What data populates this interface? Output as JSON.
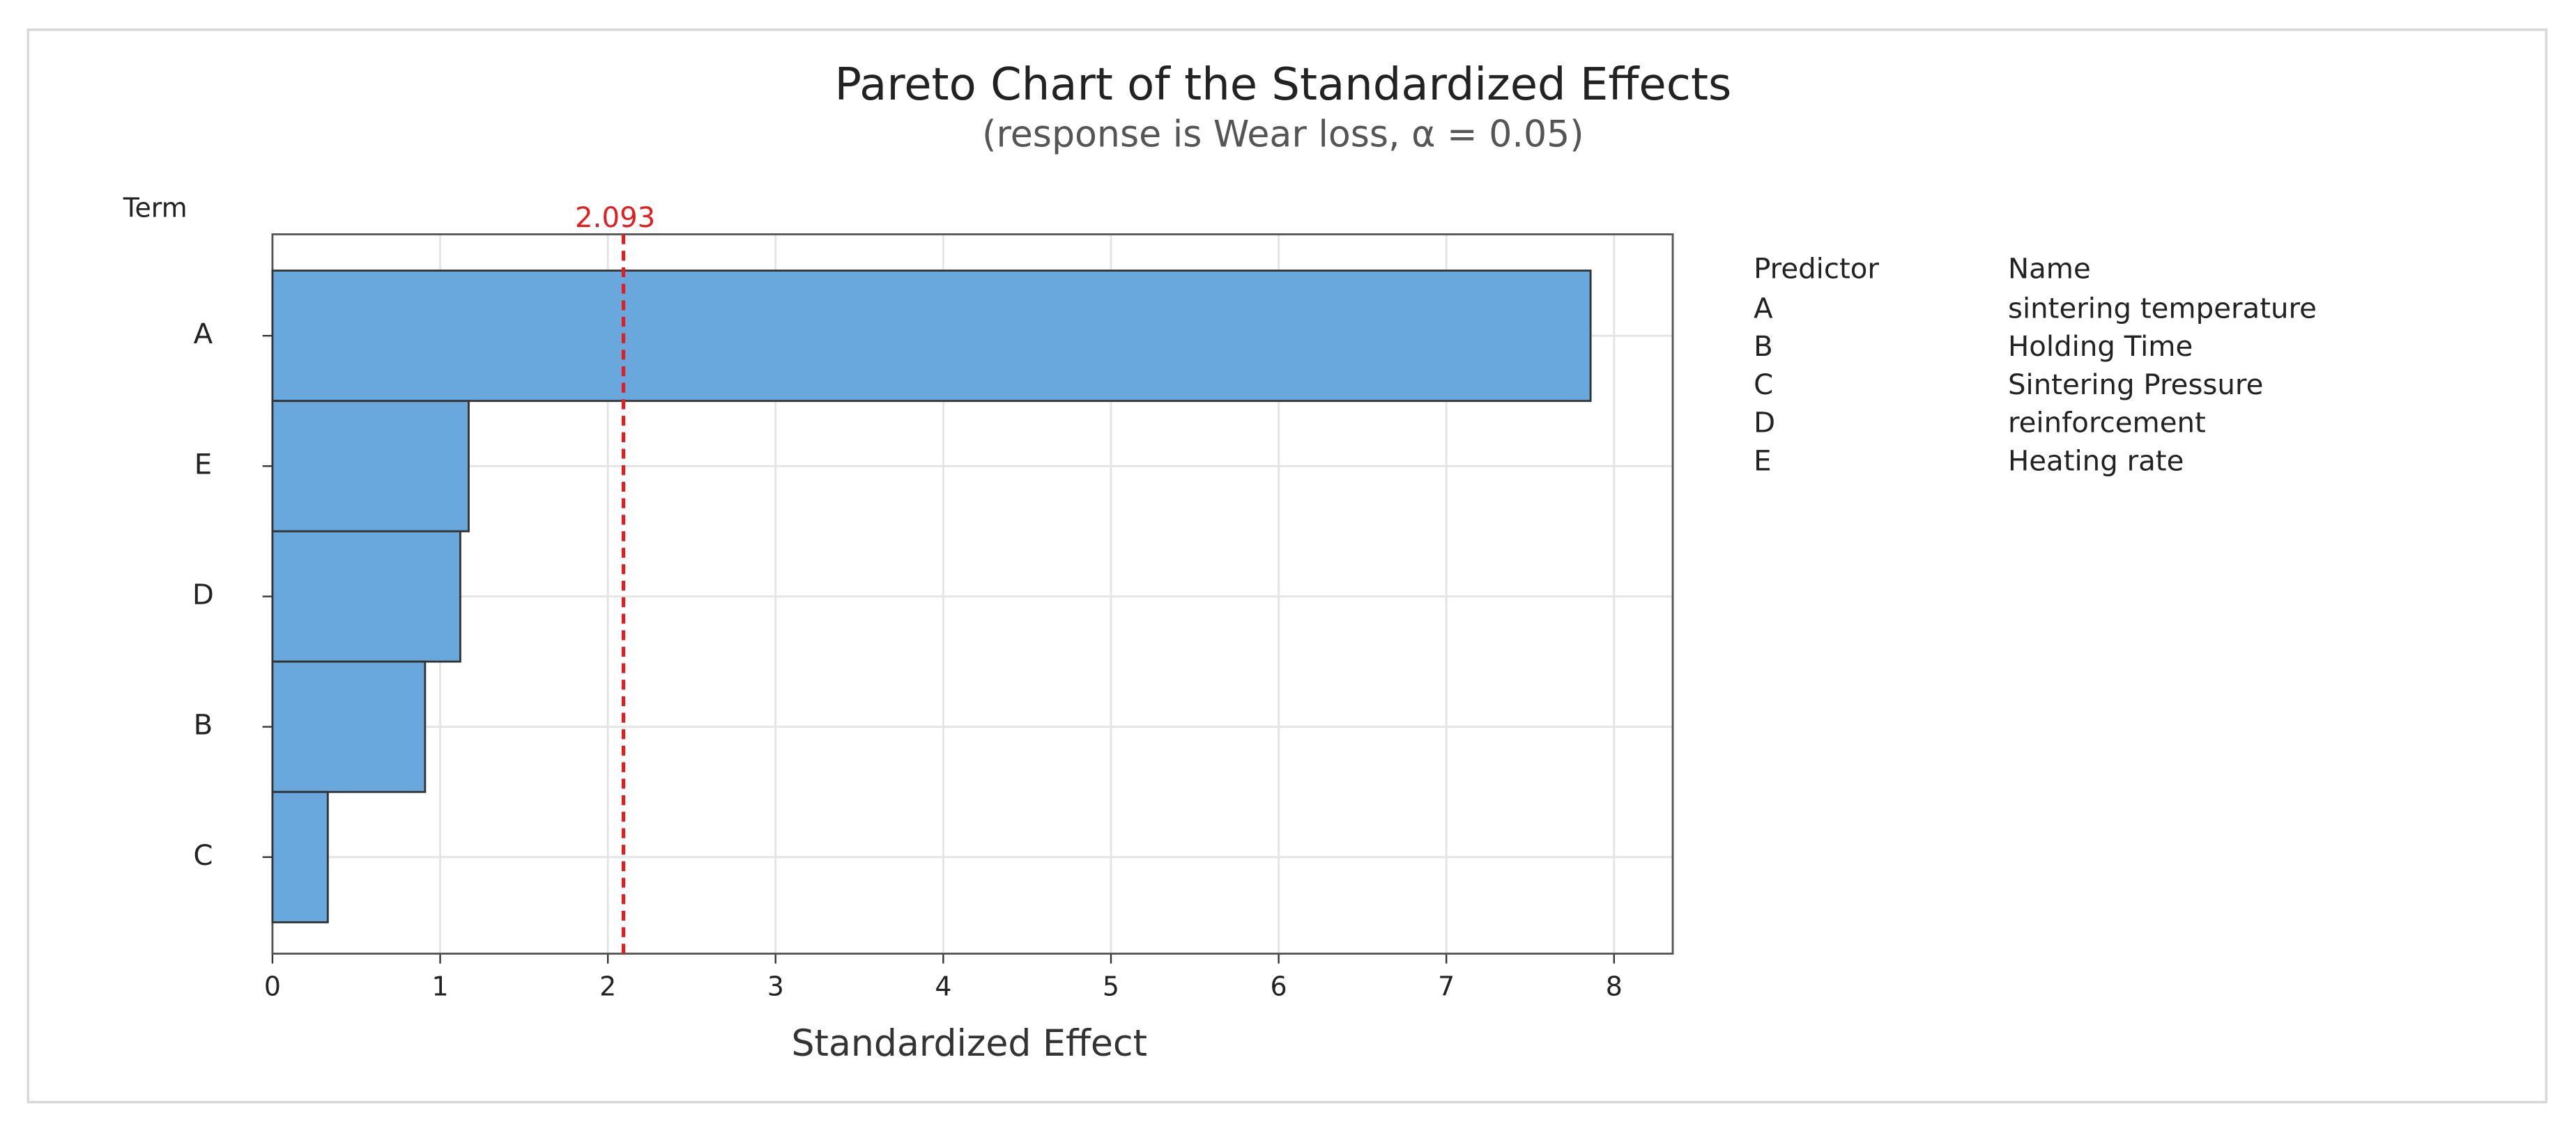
{
  "chart_data": {
    "type": "bar",
    "orientation": "horizontal",
    "title": "Pareto Chart of the Standardized Effects",
    "subtitle": "(response is Wear loss, α = 0.05)",
    "y_label": "Term",
    "x_label": "Standardized Effect",
    "categories": [
      "A",
      "E",
      "D",
      "B",
      "C"
    ],
    "values": [
      7.86,
      1.17,
      1.12,
      0.91,
      0.33
    ],
    "color": "#68a8dc",
    "xlim": [
      0,
      8.35
    ],
    "xticks": [
      0,
      1,
      2,
      3,
      4,
      5,
      6,
      7,
      8
    ],
    "grid": true,
    "reference_line": 2.093,
    "reference_color": "#e02020"
  },
  "predictor_table": {
    "headers": [
      "Predictor",
      "Name"
    ],
    "rows": [
      [
        "A",
        "sintering temperature"
      ],
      [
        "B",
        "Holding Time"
      ],
      [
        "C",
        "Sintering Pressure"
      ],
      [
        "D",
        "reinforcement"
      ],
      [
        "E",
        "Heating rate"
      ]
    ]
  }
}
